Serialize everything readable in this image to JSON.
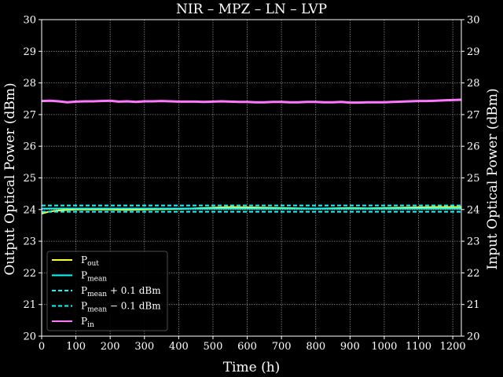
{
  "chart_data": {
    "type": "line",
    "title": "NIR – MPZ – LN – LVP",
    "xlabel": "Time (h)",
    "ylabel": "Output Optical Power (dBm)",
    "ylabel_right": "Input Optical Power (dBm)",
    "xlim": [
      0,
      1225
    ],
    "ylim": [
      20,
      30
    ],
    "ylim_right": [
      20,
      30
    ],
    "xticks": [
      0,
      100,
      200,
      300,
      400,
      500,
      600,
      700,
      800,
      900,
      1000,
      1100,
      1200
    ],
    "yticks": [
      20,
      21,
      22,
      23,
      24,
      25,
      26,
      27,
      28,
      29,
      30
    ],
    "grid": true,
    "legend_position": "lower-left",
    "series": [
      {
        "name": "P_out",
        "color": "#ffff33",
        "style": "solid",
        "x": [
          0,
          20,
          40,
          60,
          80,
          100,
          150,
          200,
          250,
          300,
          350,
          400,
          450,
          500,
          550,
          600,
          650,
          700,
          750,
          800,
          850,
          900,
          950,
          1000,
          1050,
          1100,
          1150,
          1200,
          1225
        ],
        "y": [
          23.87,
          23.93,
          23.96,
          23.98,
          23.99,
          24.0,
          24.0,
          24.0,
          23.99,
          24.0,
          24.01,
          24.02,
          24.04,
          24.06,
          24.08,
          24.07,
          24.06,
          24.05,
          24.04,
          24.03,
          24.04,
          24.05,
          24.04,
          24.05,
          24.06,
          24.07,
          24.08,
          24.08,
          24.08
        ]
      },
      {
        "name": "P_mean",
        "color": "#00ffff",
        "style": "solid",
        "x": [
          0,
          1225
        ],
        "y": [
          24.03,
          24.03
        ]
      },
      {
        "name": "P_mean + 0.1 dBm",
        "color": "#00ffff",
        "style": "dashed",
        "x": [
          0,
          1225
        ],
        "y": [
          24.13,
          24.13
        ]
      },
      {
        "name": "P_mean − 0.1 dBm",
        "color": "#00ffff",
        "style": "dashed",
        "x": [
          0,
          1225
        ],
        "y": [
          23.93,
          23.93
        ]
      },
      {
        "name": "P_in",
        "color": "#ff77ff",
        "style": "solid",
        "x": [
          0,
          25,
          50,
          75,
          100,
          125,
          150,
          175,
          200,
          225,
          250,
          275,
          300,
          325,
          350,
          375,
          400,
          425,
          450,
          475,
          500,
          525,
          550,
          575,
          600,
          625,
          650,
          675,
          700,
          725,
          750,
          775,
          800,
          825,
          850,
          875,
          900,
          925,
          950,
          975,
          1000,
          1025,
          1050,
          1075,
          1100,
          1125,
          1150,
          1175,
          1200,
          1225
        ],
        "y": [
          27.43,
          27.44,
          27.42,
          27.39,
          27.41,
          27.42,
          27.42,
          27.43,
          27.44,
          27.41,
          27.42,
          27.4,
          27.42,
          27.42,
          27.43,
          27.42,
          27.41,
          27.41,
          27.41,
          27.4,
          27.41,
          27.42,
          27.41,
          27.4,
          27.4,
          27.39,
          27.39,
          27.4,
          27.4,
          27.39,
          27.39,
          27.4,
          27.4,
          27.39,
          27.39,
          27.4,
          27.38,
          27.38,
          27.39,
          27.39,
          27.39,
          27.4,
          27.41,
          27.42,
          27.43,
          27.43,
          27.44,
          27.45,
          27.46,
          27.47
        ]
      }
    ],
    "legend": [
      {
        "base": "P",
        "sub": "out",
        "suffix": ""
      },
      {
        "base": "P",
        "sub": "mean",
        "suffix": ""
      },
      {
        "base": "P",
        "sub": "mean",
        "suffix": " + 0.1 dBm"
      },
      {
        "base": "P",
        "sub": "mean",
        "suffix": " − 0.1 dBm"
      },
      {
        "base": "P",
        "sub": "in",
        "suffix": ""
      }
    ]
  }
}
